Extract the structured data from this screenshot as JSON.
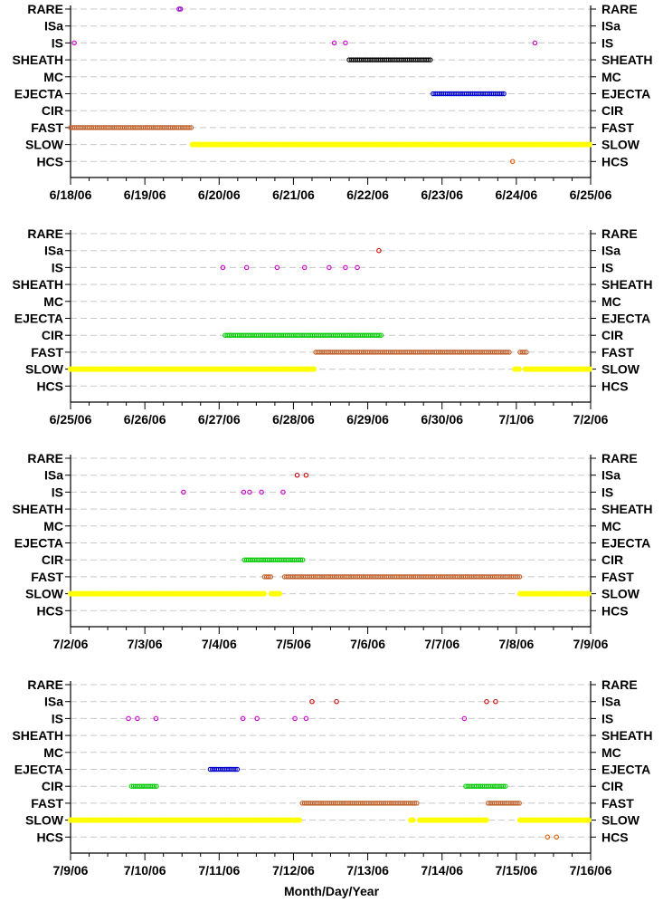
{
  "chart_data": [
    {
      "type": "scatter",
      "categories": [
        "RARE",
        "ISa",
        "IS",
        "SHEATH",
        "MC",
        "EJECTA",
        "CIR",
        "FAST",
        "SLOW",
        "HCS"
      ],
      "x_ticks": [
        "6/18/06",
        "6/19/06",
        "6/20/06",
        "6/21/06",
        "6/22/06",
        "6/23/06",
        "6/24/06",
        "6/25/06"
      ],
      "x_start": "6/18/06",
      "x_end": "6/25/06",
      "grid": true,
      "events": [
        {
          "category": "RARE",
          "x": [
            1.46,
            1.48
          ]
        },
        {
          "category": "IS",
          "x": [
            0.05,
            3.55,
            3.7,
            6.25
          ]
        },
        {
          "category": "SHEATH",
          "ranges": [
            [
              3.75,
              4.85
            ]
          ]
        },
        {
          "category": "EJECTA",
          "ranges": [
            [
              4.88,
              5.84
            ]
          ]
        },
        {
          "category": "FAST",
          "ranges": [
            [
              0.0,
              1.63
            ]
          ]
        },
        {
          "category": "SLOW",
          "ranges": [
            [
              1.64,
              7.0
            ]
          ],
          "filled": true
        },
        {
          "category": "HCS",
          "x": [
            5.95
          ]
        }
      ]
    },
    {
      "type": "scatter",
      "categories": [
        "RARE",
        "ISa",
        "IS",
        "SHEATH",
        "MC",
        "EJECTA",
        "CIR",
        "FAST",
        "SLOW",
        "HCS"
      ],
      "x_ticks": [
        "6/25/06",
        "6/26/06",
        "6/27/06",
        "6/28/06",
        "6/29/06",
        "6/30/06",
        "7/1/06",
        "7/2/06"
      ],
      "x_start": "6/25/06",
      "x_end": "7/2/06",
      "grid": true,
      "events": [
        {
          "category": "ISa",
          "x": [
            4.15
          ]
        },
        {
          "category": "IS",
          "x": [
            2.05,
            2.37,
            2.78,
            3.15,
            3.48,
            3.7,
            3.86
          ]
        },
        {
          "category": "CIR",
          "ranges": [
            [
              2.08,
              4.18
            ]
          ]
        },
        {
          "category": "FAST",
          "ranges": [
            [
              3.3,
              5.92
            ],
            [
              6.05,
              6.15
            ]
          ]
        },
        {
          "category": "SLOW",
          "ranges": [
            [
              0.0,
              3.28
            ],
            [
              5.98,
              6.06
            ],
            [
              6.12,
              7.0
            ]
          ],
          "filled": true
        }
      ]
    },
    {
      "type": "scatter",
      "categories": [
        "RARE",
        "ISa",
        "IS",
        "SHEATH",
        "MC",
        "EJECTA",
        "CIR",
        "FAST",
        "SLOW",
        "HCS"
      ],
      "x_ticks": [
        "7/2/06",
        "7/3/06",
        "7/4/06",
        "7/5/06",
        "7/6/06",
        "7/7/06",
        "7/8/06",
        "7/9/06"
      ],
      "x_start": "7/2/06",
      "x_end": "7/9/06",
      "grid": true,
      "events": [
        {
          "category": "ISa",
          "x": [
            3.05,
            3.17
          ]
        },
        {
          "category": "IS",
          "x": [
            1.52,
            2.33,
            2.41,
            2.57,
            2.86
          ]
        },
        {
          "category": "CIR",
          "ranges": [
            [
              2.34,
              3.15
            ]
          ]
        },
        {
          "category": "FAST",
          "ranges": [
            [
              2.61,
              2.72
            ],
            [
              2.88,
              6.05
            ]
          ]
        },
        {
          "category": "SLOW",
          "ranges": [
            [
              0.0,
              2.63
            ],
            [
              2.7,
              2.82
            ],
            [
              6.05,
              7.0
            ]
          ],
          "filled": true
        }
      ]
    },
    {
      "type": "scatter",
      "categories": [
        "RARE",
        "ISa",
        "IS",
        "SHEATH",
        "MC",
        "EJECTA",
        "CIR",
        "FAST",
        "SLOW",
        "HCS"
      ],
      "x_ticks": [
        "7/9/06",
        "7/10/06",
        "7/11/06",
        "7/12/06",
        "7/13/06",
        "7/14/06",
        "7/15/06",
        "7/16/06"
      ],
      "x_start": "7/9/06",
      "x_end": "7/16/06",
      "xlabel": "Month/Day/Year",
      "grid": true,
      "events": [
        {
          "category": "ISa",
          "x": [
            3.25,
            3.58,
            5.6,
            5.72
          ]
        },
        {
          "category": "IS",
          "x": [
            0.78,
            0.9,
            1.15,
            2.32,
            2.51,
            3.02,
            3.17,
            5.3
          ]
        },
        {
          "category": "EJECTA",
          "ranges": [
            [
              1.88,
              2.27
            ]
          ]
        },
        {
          "category": "CIR",
          "ranges": [
            [
              0.82,
              1.18
            ],
            [
              5.32,
              5.86
            ]
          ]
        },
        {
          "category": "FAST",
          "ranges": [
            [
              3.12,
              4.68
            ],
            [
              5.62,
              6.04
            ]
          ]
        },
        {
          "category": "SLOW",
          "ranges": [
            [
              0.0,
              3.1
            ],
            [
              4.58,
              4.62
            ],
            [
              4.7,
              5.62
            ],
            [
              6.05,
              7.0
            ]
          ],
          "filled": true
        },
        {
          "category": "HCS",
          "x": [
            6.42,
            6.54
          ]
        }
      ]
    }
  ],
  "colors": {
    "RARE": "#9900cc",
    "ISa": "#cc0000",
    "IS": "#cc00cc",
    "SHEATH": "#000000",
    "MC": "#000000",
    "EJECTA": "#0000cc",
    "CIR": "#00cc00",
    "FAST": "#c0622b",
    "SLOW": "#ffff00",
    "HCS": "#e06000",
    "grid": "#c8c8c8"
  }
}
